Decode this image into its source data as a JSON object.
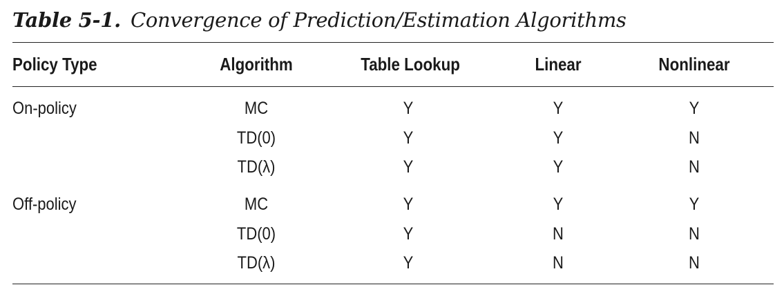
{
  "table": {
    "label": "Table 5-1.",
    "title": "Convergence of Prediction/Estimation Algorithms",
    "headers": {
      "policy_type": "Policy Type",
      "algorithm": "Algorithm",
      "table_lookup": "Table Lookup",
      "linear": "Linear",
      "nonlinear": "Nonlinear"
    },
    "rows": [
      {
        "policy": "On-policy",
        "algorithm": "MC",
        "table_lookup": "Y",
        "linear": "Y",
        "nonlinear": "Y"
      },
      {
        "policy": "",
        "algorithm": "TD(0)",
        "table_lookup": "Y",
        "linear": "Y",
        "nonlinear": "N"
      },
      {
        "policy": "",
        "algorithm": "TD(λ)",
        "table_lookup": "Y",
        "linear": "Y",
        "nonlinear": "N"
      },
      {
        "policy": "Off-policy",
        "algorithm": "MC",
        "table_lookup": "Y",
        "linear": "Y",
        "nonlinear": "Y"
      },
      {
        "policy": "",
        "algorithm": "TD(0)",
        "table_lookup": "Y",
        "linear": "N",
        "nonlinear": "N"
      },
      {
        "policy": "",
        "algorithm": "TD(λ)",
        "table_lookup": "Y",
        "linear": "N",
        "nonlinear": "N"
      }
    ]
  }
}
